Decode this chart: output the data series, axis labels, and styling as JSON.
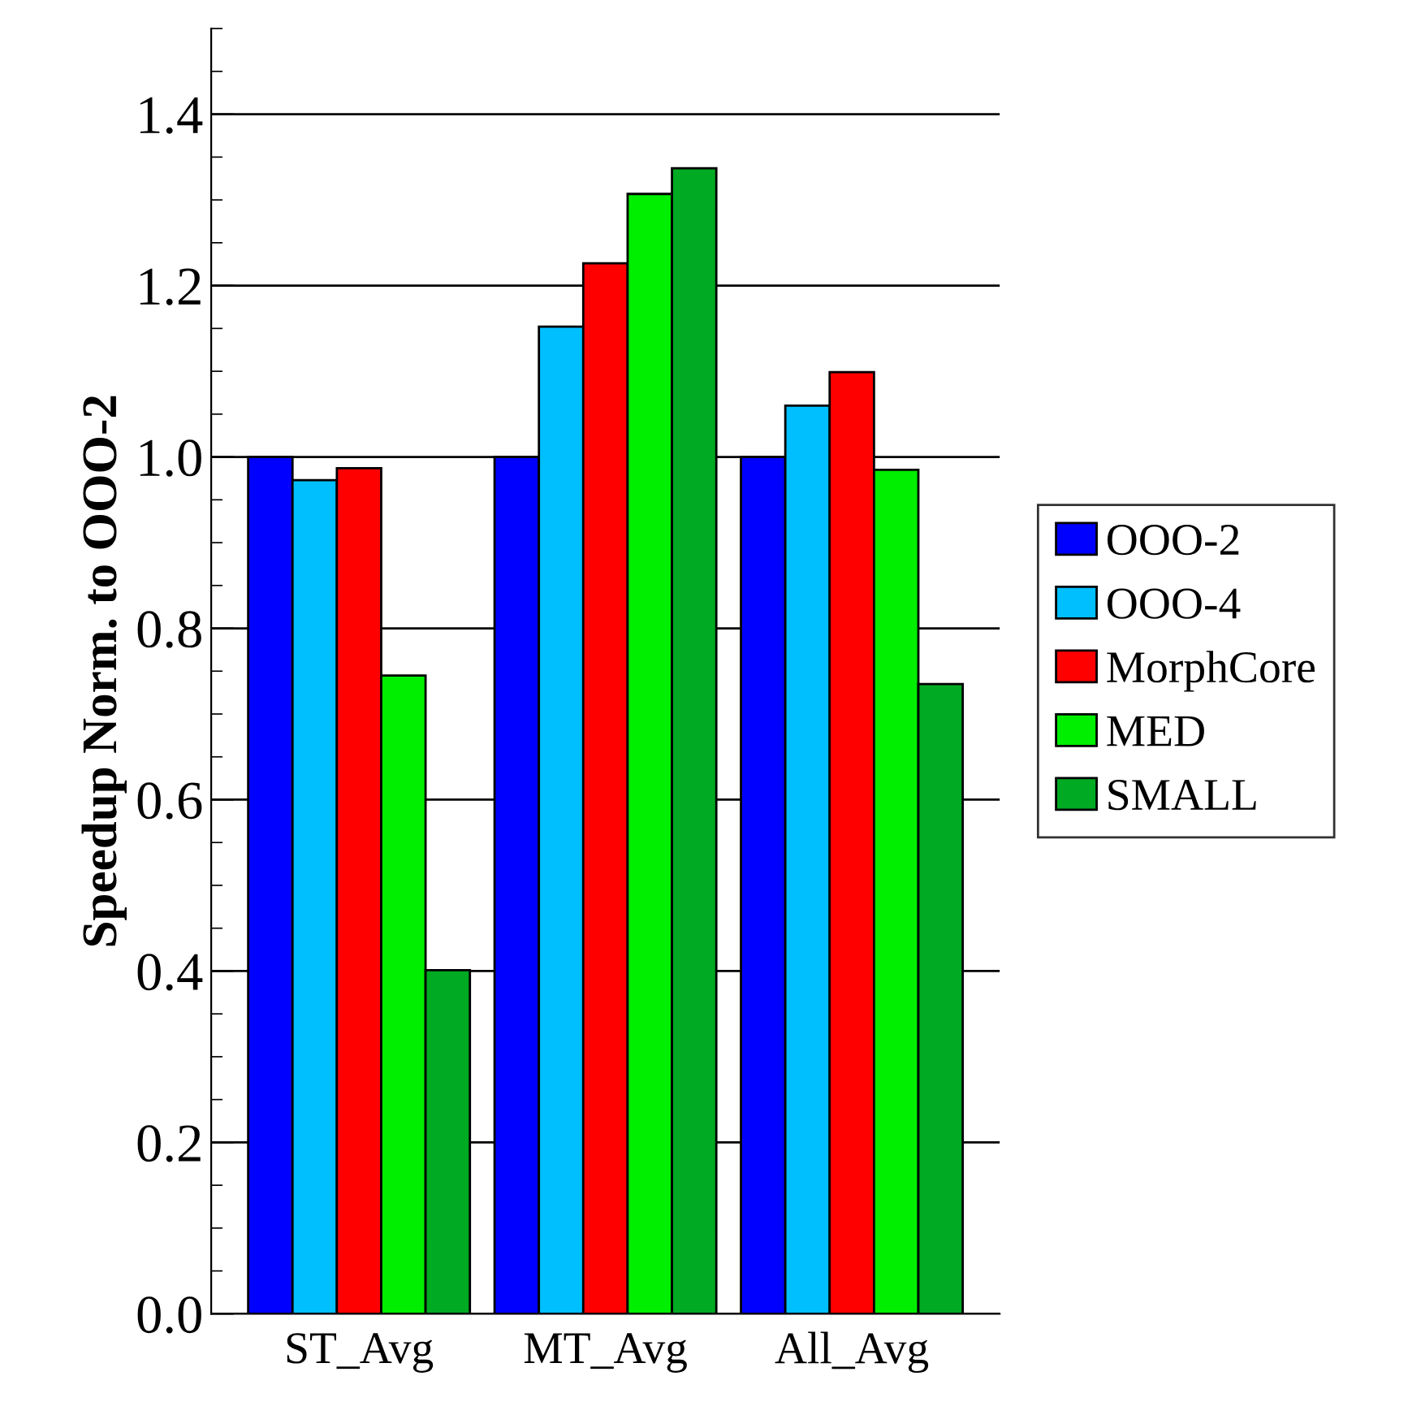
{
  "chart_data": {
    "type": "bar",
    "ylabel": "Speedup Norm. to OOO-2",
    "categories": [
      "ST_Avg",
      "MT_Avg",
      "All_Avg"
    ],
    "series": [
      {
        "name": "OOO-2",
        "color": "#0000ff",
        "values": [
          1.0,
          1.0,
          1.0
        ]
      },
      {
        "name": "OOO-4",
        "color": "#00bfff",
        "values": [
          0.973,
          1.152,
          1.06
        ]
      },
      {
        "name": "MorphCore",
        "color": "#ff0000",
        "values": [
          0.987,
          1.226,
          1.099
        ]
      },
      {
        "name": "MED",
        "color": "#00ee00",
        "values": [
          0.745,
          1.307,
          0.985
        ]
      },
      {
        "name": "SMALL",
        "color": "#00aa22",
        "values": [
          0.401,
          1.337,
          0.735
        ]
      }
    ],
    "ylim": [
      0,
      1.5
    ],
    "yticks": [
      {
        "value": 0,
        "label": "0.0"
      },
      0.2,
      0.4,
      0.6,
      0.8,
      {
        "value": 1,
        "label": "1.0"
      },
      1.2,
      1.4
    ],
    "grid": "y",
    "legend": "right"
  }
}
